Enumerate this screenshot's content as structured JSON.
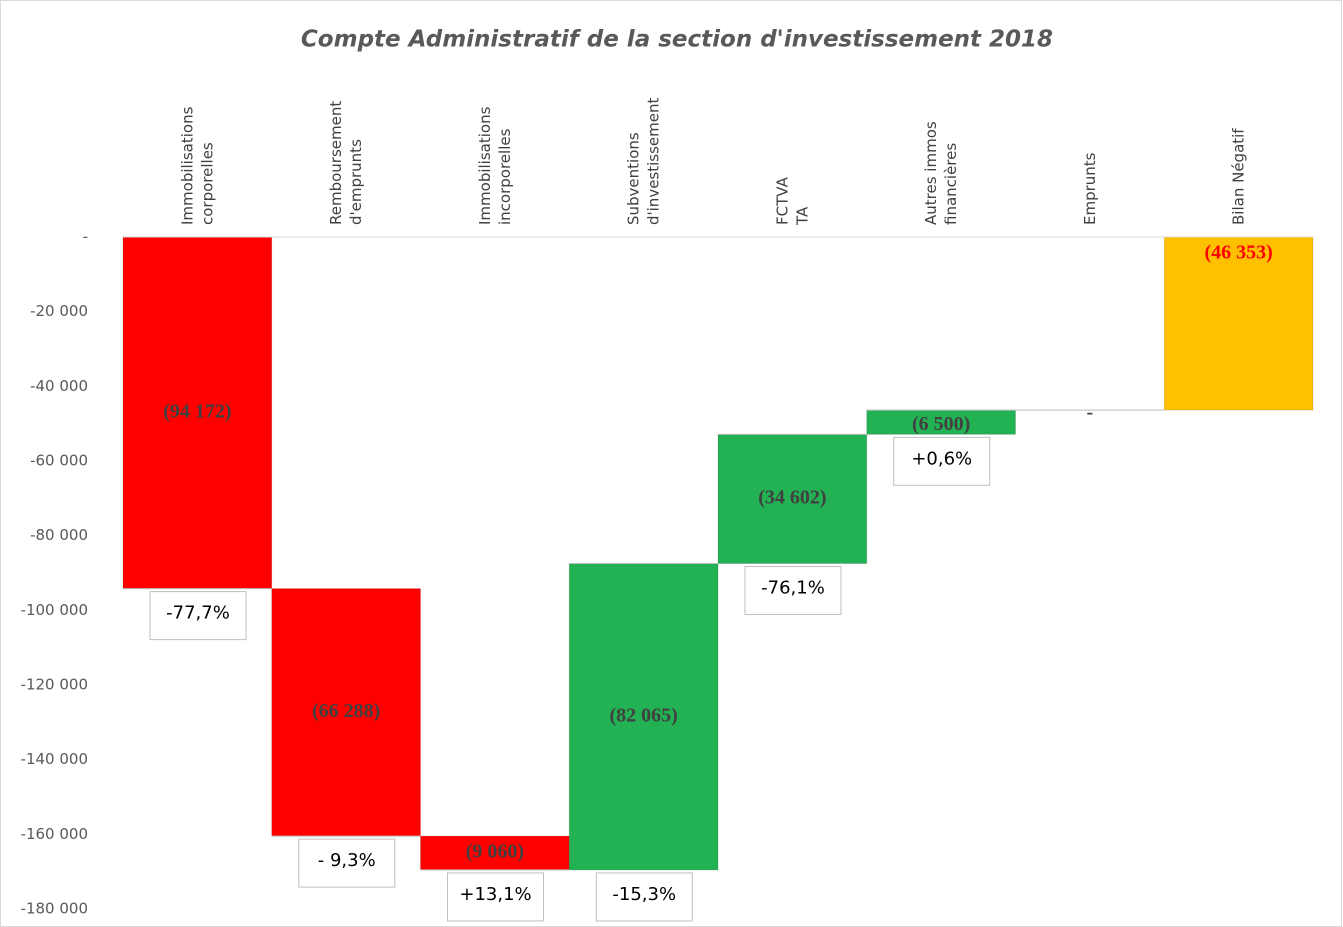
{
  "chart_data": {
    "type": "waterfall",
    "title": "Compte Administratif de la section d'investissement 2018",
    "categories": [
      [
        "Immobilisations",
        "corporelles"
      ],
      [
        "Remboursement",
        "d'emprunts"
      ],
      [
        "Immobilisations",
        "incorporelles"
      ],
      [
        "Subventions",
        "d'investissement"
      ],
      [
        "FCTVA",
        "TA"
      ],
      [
        "Autres immos",
        "financières"
      ],
      [
        "Emprunts"
      ],
      [
        "Bilan Négatif"
      ]
    ],
    "values": [
      -94172,
      -66288,
      -9060,
      82065,
      34602,
      6500,
      0,
      -46353
    ],
    "value_labels": [
      "(94 172)",
      "(66 288)",
      "(9 060)",
      "(82 065)",
      "(34 602)",
      "(6 500)",
      "-",
      "(46 353)"
    ],
    "change_labels": [
      "-77,7%",
      "- 9,3%",
      "+13,1%",
      "-15,3%",
      "-76,1%",
      "+0,6%",
      null,
      null
    ],
    "is_total": [
      false,
      false,
      false,
      false,
      false,
      false,
      false,
      true
    ],
    "colors": [
      "#ff0000",
      "#ff0000",
      "#ff0000",
      "#22b153",
      "#22b153",
      "#22b153",
      "#22b153",
      "#ffc000"
    ],
    "ylim": [
      -184000,
      0
    ],
    "yticks": [
      {
        "value": 0,
        "label": "-"
      },
      {
        "value": -20000,
        "label": "-20 000"
      },
      {
        "value": -40000,
        "label": "-40 000"
      },
      {
        "value": -60000,
        "label": "-60 000"
      },
      {
        "value": -80000,
        "label": "-80 000"
      },
      {
        "value": -100000,
        "label": "-100 000"
      },
      {
        "value": -120000,
        "label": "-120 000"
      },
      {
        "value": -140000,
        "label": "-140 000"
      },
      {
        "value": -160000,
        "label": "-160 000"
      },
      {
        "value": -180000,
        "label": "-180 000"
      }
    ]
  }
}
